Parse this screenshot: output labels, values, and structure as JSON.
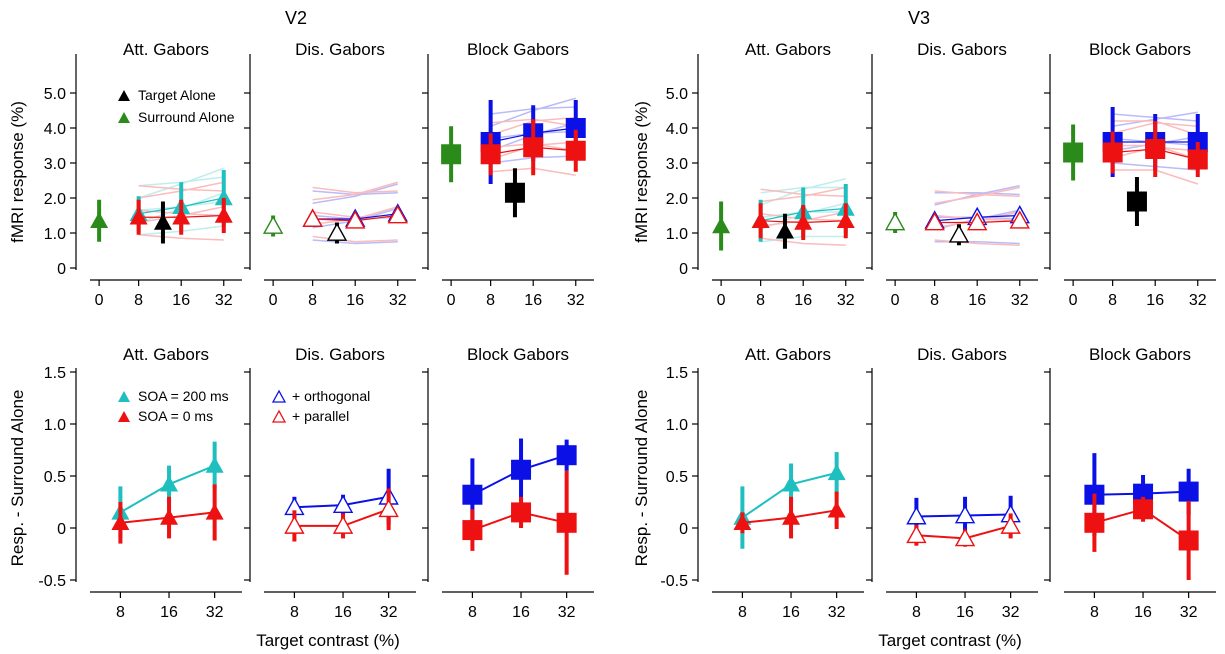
{
  "figure": {
    "groups": [
      {
        "id": "v2",
        "title": "V2"
      },
      {
        "id": "v3",
        "title": "V3"
      }
    ],
    "xlabel": "Target contrast (%)",
    "ylabel_top": "fMRI response (%)",
    "ylabel_bottom": "Resp. - Surround Alone",
    "legends": {
      "target_alone": "Target Alone",
      "surround_alone": "Surround Alone",
      "soa200": "SOA = 200 ms",
      "soa0": "SOA = 0 ms",
      "orthogonal": "+ orthogonal",
      "parallel": "+ parallel"
    },
    "colors": {
      "cyan": "#1fbfbf",
      "red": "#ee1111",
      "blue": "#0a10e6",
      "green": "#2a8a1a",
      "black": "#000000",
      "gray": "#9a9a9a"
    }
  },
  "chart_data": [
    {
      "group": "V2",
      "title": "Att. Gabors",
      "type": "scatter",
      "row": "top",
      "xticks": [
        "0",
        "8",
        "16",
        "32"
      ],
      "ylim": [
        0,
        6
      ],
      "yticks": [
        "0",
        "1.0",
        "2.0",
        "3.0",
        "4.0",
        "5.0"
      ],
      "series": [
        {
          "name": "Surround Alone",
          "marker": "triangle",
          "color": "green",
          "x": [
            0
          ],
          "y": [
            1.35
          ],
          "err": [
            0.6
          ]
        },
        {
          "name": "SOA = 200 ms",
          "marker": "triangle",
          "color": "cyan",
          "x": [
            8,
            16,
            32
          ],
          "y": [
            1.55,
            1.75,
            2.0
          ],
          "err": [
            0.5,
            0.7,
            0.8
          ]
        },
        {
          "name": "SOA = 0 ms",
          "marker": "triangle",
          "color": "red",
          "x": [
            8,
            16,
            32
          ],
          "y": [
            1.45,
            1.45,
            1.5
          ],
          "err": [
            0.5,
            0.5,
            0.5
          ]
        },
        {
          "name": "Target Alone",
          "marker": "triangle",
          "color": "black",
          "x": [
            12
          ],
          "y": [
            1.3
          ],
          "err": [
            0.6
          ]
        }
      ]
    },
    {
      "group": "V2",
      "title": "Dis. Gabors",
      "type": "scatter",
      "row": "top",
      "xticks": [
        "0",
        "8",
        "16",
        "32"
      ],
      "ylim": [
        0,
        6
      ],
      "series": [
        {
          "name": "Surround Alone",
          "marker": "open-triangle",
          "color": "green",
          "x": [
            0
          ],
          "y": [
            1.2
          ],
          "err": [
            0.3
          ]
        },
        {
          "name": "+ orthogonal",
          "marker": "open-triangle",
          "color": "blue",
          "x": [
            8,
            16,
            32
          ],
          "y": [
            1.4,
            1.4,
            1.55
          ],
          "err": [
            0.2,
            0.2,
            0.2
          ]
        },
        {
          "name": "+ parallel",
          "marker": "open-triangle",
          "color": "red",
          "x": [
            8,
            16,
            32
          ],
          "y": [
            1.4,
            1.35,
            1.5
          ],
          "err": [
            0.2,
            0.2,
            0.2
          ]
        },
        {
          "name": "Target Alone",
          "marker": "open-triangle",
          "color": "black",
          "x": [
            12
          ],
          "y": [
            1.0
          ],
          "err": [
            0.3
          ]
        }
      ]
    },
    {
      "group": "V2",
      "title": "Block Gabors",
      "type": "scatter",
      "row": "top",
      "xticks": [
        "0",
        "8",
        "16",
        "32"
      ],
      "ylim": [
        0,
        6
      ],
      "series": [
        {
          "name": "Surround Alone",
          "marker": "square",
          "color": "green",
          "x": [
            0
          ],
          "y": [
            3.25
          ],
          "err": [
            0.8
          ]
        },
        {
          "name": "+ orthogonal",
          "marker": "square",
          "color": "blue",
          "x": [
            8,
            16,
            32
          ],
          "y": [
            3.6,
            3.85,
            4.0
          ],
          "err": [
            1.2,
            0.8,
            0.8
          ]
        },
        {
          "name": "+ parallel",
          "marker": "square",
          "color": "red",
          "x": [
            8,
            16,
            32
          ],
          "y": [
            3.25,
            3.45,
            3.35
          ],
          "err": [
            0.6,
            0.8,
            0.6
          ]
        },
        {
          "name": "Target Alone",
          "marker": "square",
          "color": "black",
          "x": [
            12
          ],
          "y": [
            2.15
          ],
          "err": [
            0.7
          ]
        }
      ]
    },
    {
      "group": "V2",
      "title": "Att. Gabors",
      "type": "line",
      "row": "bottom",
      "xticks": [
        "8",
        "16",
        "32"
      ],
      "ylim": [
        -0.5,
        1.5
      ],
      "yticks": [
        "-0.5",
        "0",
        "0.5",
        "1.0",
        "1.5"
      ],
      "series": [
        {
          "name": "SOA = 200 ms",
          "marker": "triangle",
          "color": "cyan",
          "x": [
            8,
            16,
            32
          ],
          "y": [
            0.15,
            0.42,
            0.6
          ],
          "err": [
            0.25,
            0.18,
            0.23
          ]
        },
        {
          "name": "SOA = 0 ms",
          "marker": "triangle",
          "color": "red",
          "x": [
            8,
            16,
            32
          ],
          "y": [
            0.05,
            0.1,
            0.15
          ],
          "err": [
            0.2,
            0.2,
            0.27
          ]
        }
      ]
    },
    {
      "group": "V2",
      "title": "Dis. Gabors",
      "type": "line",
      "row": "bottom",
      "xticks": [
        "8",
        "16",
        "32"
      ],
      "ylim": [
        -0.5,
        1.5
      ],
      "series": [
        {
          "name": "+ orthogonal",
          "marker": "open-triangle",
          "color": "blue",
          "x": [
            8,
            16,
            32
          ],
          "y": [
            0.2,
            0.22,
            0.3
          ],
          "err": [
            0.1,
            0.1,
            0.27
          ]
        },
        {
          "name": "+ parallel",
          "marker": "open-triangle",
          "color": "red",
          "x": [
            8,
            16,
            32
          ],
          "y": [
            0.02,
            0.02,
            0.18
          ],
          "err": [
            0.15,
            0.12,
            0.2
          ]
        }
      ]
    },
    {
      "group": "V2",
      "title": "Block Gabors",
      "type": "line",
      "row": "bottom",
      "xticks": [
        "8",
        "16",
        "32"
      ],
      "ylim": [
        -0.5,
        1.5
      ],
      "series": [
        {
          "name": "+ orthogonal",
          "marker": "square",
          "color": "blue",
          "x": [
            8,
            16,
            32
          ],
          "y": [
            0.32,
            0.56,
            0.7
          ],
          "err": [
            0.35,
            0.3,
            0.15
          ]
        },
        {
          "name": "+ parallel",
          "marker": "square",
          "color": "red",
          "x": [
            8,
            16,
            32
          ],
          "y": [
            -0.02,
            0.15,
            0.05
          ],
          "err": [
            0.2,
            0.15,
            0.5
          ]
        }
      ]
    },
    {
      "group": "V3",
      "title": "Att. Gabors",
      "type": "scatter",
      "row": "top",
      "xticks": [
        "0",
        "8",
        "16",
        "32"
      ],
      "ylim": [
        0,
        6
      ],
      "yticks": [
        "0",
        "1.0",
        "2.0",
        "3.0",
        "4.0",
        "5.0"
      ],
      "series": [
        {
          "name": "Surround Alone",
          "marker": "triangle",
          "color": "green",
          "x": [
            0
          ],
          "y": [
            1.2
          ],
          "err": [
            0.7
          ]
        },
        {
          "name": "SOA = 200 ms",
          "marker": "triangle",
          "color": "cyan",
          "x": [
            8,
            16,
            32
          ],
          "y": [
            1.35,
            1.6,
            1.7
          ],
          "err": [
            0.6,
            0.7,
            0.7
          ]
        },
        {
          "name": "SOA = 0 ms",
          "marker": "triangle",
          "color": "red",
          "x": [
            8,
            16,
            32
          ],
          "y": [
            1.35,
            1.3,
            1.35
          ],
          "err": [
            0.5,
            0.5,
            0.5
          ]
        },
        {
          "name": "Target Alone",
          "marker": "triangle",
          "color": "black",
          "x": [
            12
          ],
          "y": [
            1.05
          ],
          "err": [
            0.5
          ]
        }
      ]
    },
    {
      "group": "V3",
      "title": "Dis. Gabors",
      "type": "scatter",
      "row": "top",
      "xticks": [
        "0",
        "8",
        "16",
        "32"
      ],
      "ylim": [
        0,
        6
      ],
      "series": [
        {
          "name": "Surround Alone",
          "marker": "open-triangle",
          "color": "green",
          "x": [
            0
          ],
          "y": [
            1.3
          ],
          "err": [
            0.3
          ]
        },
        {
          "name": "+ orthogonal",
          "marker": "open-triangle",
          "color": "blue",
          "x": [
            8,
            16,
            32
          ],
          "y": [
            1.35,
            1.45,
            1.5
          ],
          "err": [
            0.2,
            0.2,
            0.2
          ]
        },
        {
          "name": "+ parallel",
          "marker": "open-triangle",
          "color": "red",
          "x": [
            8,
            16,
            32
          ],
          "y": [
            1.3,
            1.3,
            1.35
          ],
          "err": [
            0.2,
            0.2,
            0.2
          ]
        },
        {
          "name": "Target Alone",
          "marker": "open-triangle",
          "color": "black",
          "x": [
            12
          ],
          "y": [
            0.95
          ],
          "err": [
            0.3
          ]
        }
      ]
    },
    {
      "group": "V3",
      "title": "Block Gabors",
      "type": "scatter",
      "row": "top",
      "xticks": [
        "0",
        "8",
        "16",
        "32"
      ],
      "ylim": [
        0,
        6
      ],
      "series": [
        {
          "name": "Surround Alone",
          "marker": "square",
          "color": "green",
          "x": [
            0
          ],
          "y": [
            3.3
          ],
          "err": [
            0.8
          ]
        },
        {
          "name": "+ orthogonal",
          "marker": "square",
          "color": "blue",
          "x": [
            8,
            16,
            32
          ],
          "y": [
            3.6,
            3.6,
            3.6
          ],
          "err": [
            1.0,
            0.8,
            0.8
          ]
        },
        {
          "name": "+ parallel",
          "marker": "square",
          "color": "red",
          "x": [
            8,
            16,
            32
          ],
          "y": [
            3.3,
            3.4,
            3.1
          ],
          "err": [
            0.6,
            0.8,
            0.5
          ]
        },
        {
          "name": "Target Alone",
          "marker": "square",
          "color": "black",
          "x": [
            12
          ],
          "y": [
            1.9
          ],
          "err": [
            0.7
          ]
        }
      ]
    },
    {
      "group": "V3",
      "title": "Att. Gabors",
      "type": "line",
      "row": "bottom",
      "xticks": [
        "8",
        "16",
        "32"
      ],
      "ylim": [
        -0.5,
        1.5
      ],
      "yticks": [
        "-0.5",
        "0",
        "0.5",
        "1.0",
        "1.5"
      ],
      "series": [
        {
          "name": "SOA = 200 ms",
          "marker": "triangle",
          "color": "cyan",
          "x": [
            8,
            16,
            32
          ],
          "y": [
            0.1,
            0.42,
            0.53
          ],
          "err": [
            0.3,
            0.2,
            0.2
          ]
        },
        {
          "name": "SOA = 0 ms",
          "marker": "triangle",
          "color": "red",
          "x": [
            8,
            16,
            32
          ],
          "y": [
            0.05,
            0.1,
            0.17
          ],
          "err": [
            0.1,
            0.2,
            0.18
          ]
        }
      ]
    },
    {
      "group": "V3",
      "title": "Dis. Gabors",
      "type": "line",
      "row": "bottom",
      "xticks": [
        "8",
        "16",
        "32"
      ],
      "ylim": [
        -0.5,
        1.5
      ],
      "series": [
        {
          "name": "+ orthogonal",
          "marker": "open-triangle",
          "color": "blue",
          "x": [
            8,
            16,
            32
          ],
          "y": [
            0.11,
            0.12,
            0.13
          ],
          "err": [
            0.18,
            0.18,
            0.18
          ]
        },
        {
          "name": "+ parallel",
          "marker": "open-triangle",
          "color": "red",
          "x": [
            8,
            16,
            32
          ],
          "y": [
            -0.07,
            -0.1,
            0.02
          ],
          "err": [
            0.1,
            0.08,
            0.12
          ]
        }
      ]
    },
    {
      "group": "V3",
      "title": "Block Gabors",
      "type": "line",
      "row": "bottom",
      "xticks": [
        "8",
        "16",
        "32"
      ],
      "ylim": [
        -0.5,
        1.5
      ],
      "series": [
        {
          "name": "+ orthogonal",
          "marker": "square",
          "color": "blue",
          "x": [
            8,
            16,
            32
          ],
          "y": [
            0.32,
            0.33,
            0.35
          ],
          "err": [
            0.4,
            0.18,
            0.22
          ]
        },
        {
          "name": "+ parallel",
          "marker": "square",
          "color": "red",
          "x": [
            8,
            16,
            32
          ],
          "y": [
            0.05,
            0.18,
            -0.12
          ],
          "err": [
            0.28,
            0.12,
            0.38
          ]
        }
      ]
    }
  ]
}
